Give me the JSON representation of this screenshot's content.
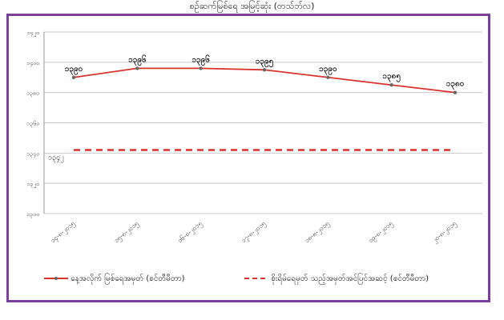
{
  "chart_data": {
    "type": "line",
    "title": "စဉ်ဆက်မြစ်ရေ အမြင့်ဆုံး (တသ်ဘ်လ)",
    "y_ticks": [
      "၁၄၂၀",
      "၁၄၀၀",
      "၁၃၈၀",
      "၁၃၆၀",
      "၁၃၄၀",
      "၁၃၂၀",
      "၁၃၀၀"
    ],
    "ylim": [
      1300,
      1420
    ],
    "categories": [
      "၁၄-၈-၂၀၁၅",
      "၁၅-၈-၂၀၁၅",
      "၁၆-၈-၂၀၁၅",
      "၁၇-၈-၂၀၁၅",
      "၁၈-၈-၂၀၁၅",
      "၁၉-၈-၂၀၁၅",
      "၂၀-၈-၂၀၁၅"
    ],
    "series": [
      {
        "name": "နေ့အလိုက် မြစ်ရေအမှတ် (စင်တီမီတာ)",
        "color": "#d9322b",
        "values": [
          1390,
          1396,
          1396,
          1395,
          1390,
          1385,
          1380
        ],
        "labels": [
          "၁၃၉၀",
          "၁၃၉၆",
          "၁၃၉၆",
          "၁၃၉၅",
          "၁၃၉၀",
          "၁၃၈၅",
          "၁၃၈၀"
        ]
      },
      {
        "name": "စိုးရိမ်ရေမှတ် သည့်အမှတ်အင်ပြင်အဆင့် (စင်တီမီတာ)",
        "color": "#d9322b",
        "style": "dashed",
        "value": 1342,
        "label": "၁၃၄၂"
      }
    ],
    "grid": true,
    "legend": "bottom"
  }
}
